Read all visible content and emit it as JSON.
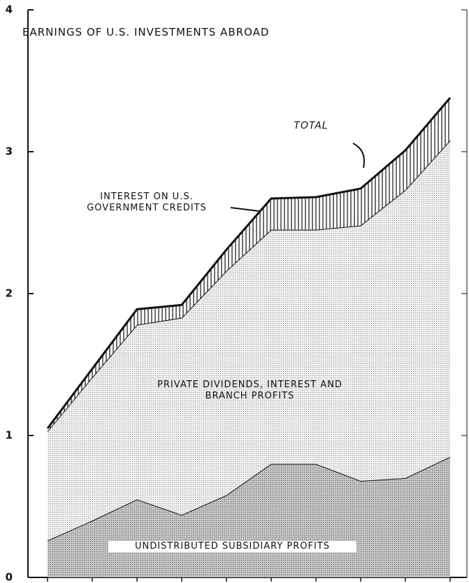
{
  "chart_data": {
    "type": "stacked_area",
    "title": "EARNINGS OF U.S. INVESTMENTS ABROAD",
    "annotation": "TOTAL",
    "categories": [
      null,
      null,
      null,
      null,
      null,
      null,
      null,
      null,
      null,
      null
    ],
    "series": [
      {
        "name": "UNDISTRIBUTED SUBSIDIARY PROFITS",
        "color": "#b8b8b8",
        "values": [
          0.26,
          0.4,
          0.55,
          0.44,
          0.58,
          0.8,
          0.8,
          0.68,
          0.7,
          0.85
        ]
      },
      {
        "name": "PRIVATE DIVIDENDS, INTEREST AND BRANCH PROFITS",
        "color": "#e2e2e2",
        "values": [
          0.77,
          1.01,
          1.23,
          1.39,
          1.58,
          1.65,
          1.65,
          1.8,
          2.03,
          2.23
        ]
      },
      {
        "name": "INTEREST ON U.S. GOVERNMENT CREDITS",
        "color": "#ffffff",
        "values": [
          0.02,
          0.06,
          0.11,
          0.09,
          0.15,
          0.22,
          0.23,
          0.26,
          0.28,
          0.3
        ]
      }
    ],
    "ylim": [
      0,
      4
    ],
    "yticks": [
      0,
      1,
      2,
      3,
      4
    ]
  }
}
